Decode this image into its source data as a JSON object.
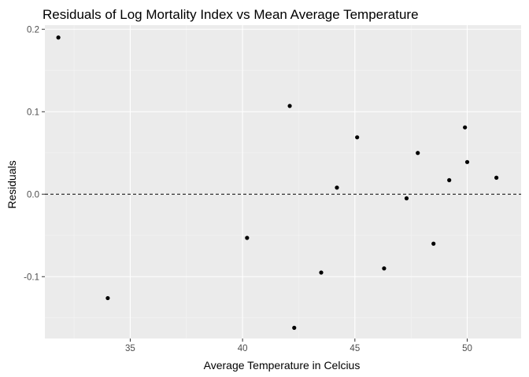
{
  "chart_data": {
    "type": "scatter",
    "title": "Residuals of Log Mortality Index vs Mean Average Temperature",
    "xlabel": "Average Temperature in Celcius",
    "ylabel": "Residuals",
    "xlim": [
      31.2,
      52.4
    ],
    "ylim": [
      -0.175,
      0.205
    ],
    "x_ticks": [
      35,
      40,
      45,
      50
    ],
    "x_tick_labels": [
      "35",
      "40",
      "45",
      "50"
    ],
    "x_minor_ticks": [
      32.5,
      37.5,
      42.5,
      47.5,
      52.5
    ],
    "y_ticks": [
      -0.1,
      0.0,
      0.1,
      0.2
    ],
    "y_tick_labels": [
      "-0.1",
      "0.0",
      "0.1",
      "0.2"
    ],
    "y_minor_ticks": [
      -0.15,
      -0.05,
      0.05,
      0.15
    ],
    "grid": true,
    "reference_line": {
      "y": 0,
      "style": "dashed"
    },
    "points": [
      {
        "x": 31.8,
        "y": 0.19
      },
      {
        "x": 34.0,
        "y": -0.126
      },
      {
        "x": 40.2,
        "y": -0.053
      },
      {
        "x": 42.1,
        "y": 0.107
      },
      {
        "x": 42.3,
        "y": -0.162
      },
      {
        "x": 43.5,
        "y": -0.095
      },
      {
        "x": 44.2,
        "y": 0.008
      },
      {
        "x": 45.1,
        "y": 0.069
      },
      {
        "x": 46.3,
        "y": -0.09
      },
      {
        "x": 47.3,
        "y": -0.005
      },
      {
        "x": 47.8,
        "y": 0.05
      },
      {
        "x": 48.5,
        "y": -0.06
      },
      {
        "x": 49.2,
        "y": 0.017
      },
      {
        "x": 49.9,
        "y": 0.081
      },
      {
        "x": 50.0,
        "y": 0.039
      },
      {
        "x": 51.3,
        "y": 0.02
      }
    ],
    "colors": {
      "panel_background": "#ebebeb",
      "grid_major": "#ffffff",
      "grid_minor": "#f5f5f5",
      "point": "#000000",
      "reference_line": "#000000"
    }
  }
}
